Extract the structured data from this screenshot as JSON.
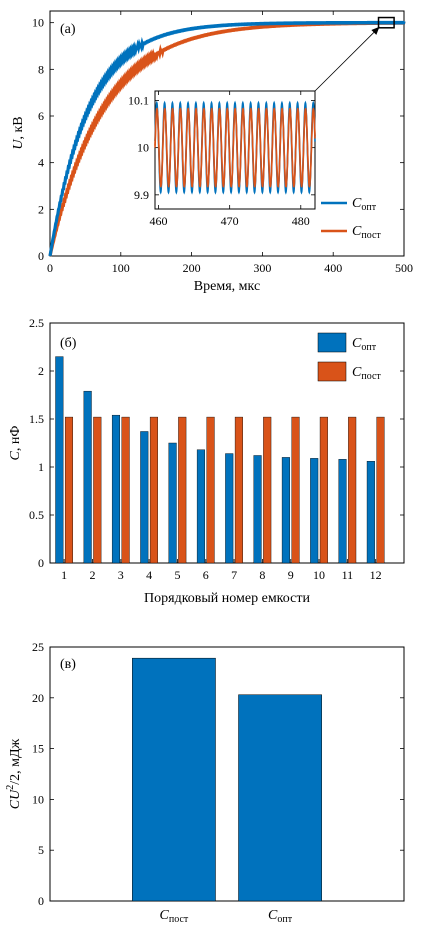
{
  "colors": {
    "opt": "#0072BD",
    "post": "#D95319",
    "axis": "#000000"
  },
  "chart_data": [
    {
      "type": "line",
      "panel_label": "(а)",
      "xlabel": "Время, мкс",
      "ylabel_var": "U",
      "ylabel_unit": ", кВ",
      "xlim": [
        0,
        500
      ],
      "ylim": [
        0,
        10.5
      ],
      "xticks": [
        0,
        100,
        200,
        300,
        400,
        500
      ],
      "yticks": [
        0,
        2,
        4,
        6,
        8,
        10
      ],
      "series": [
        {
          "name": "C",
          "sub": "опт",
          "color_key": "opt",
          "final": 10,
          "tau_us": 55,
          "ripple_kv": 0.06
        },
        {
          "name": "C",
          "sub": "пост",
          "color_key": "post",
          "final": 10,
          "tau_us": 75,
          "ripple_kv": 0.06
        }
      ],
      "legend": "bottom-right",
      "zoom_box": {
        "x": [
          464,
          486
        ],
        "y": [
          9.78,
          10.22
        ]
      },
      "inset": {
        "xlim": [
          459.5,
          482
        ],
        "ylim": [
          9.87,
          10.12
        ],
        "xticks": [
          460,
          470,
          480
        ],
        "ytick_labels": [
          9.9,
          10,
          10.1
        ],
        "period_us": 1.1,
        "center": 10,
        "amplitude_post": 0.085,
        "amplitude_opt": 0.095
      }
    },
    {
      "type": "bar",
      "panel_label": "(б)",
      "xlabel": "Порядковый номер емкости",
      "ylabel_var": "C",
      "ylabel_unit": ", нФ",
      "ylim": [
        0,
        2.5
      ],
      "yticks": [
        0,
        0.5,
        1,
        1.5,
        2,
        2.5
      ],
      "categories": [
        "1",
        "2",
        "3",
        "4",
        "5",
        "6",
        "7",
        "8",
        "9",
        "10",
        "11",
        "12"
      ],
      "series": [
        {
          "name": "C",
          "sub": "опт",
          "color_key": "opt",
          "values": [
            2.15,
            1.79,
            1.54,
            1.37,
            1.25,
            1.18,
            1.14,
            1.12,
            1.1,
            1.09,
            1.08,
            1.06
          ]
        },
        {
          "name": "C",
          "sub": "пост",
          "color_key": "post",
          "values": [
            1.52,
            1.52,
            1.52,
            1.52,
            1.52,
            1.52,
            1.52,
            1.52,
            1.52,
            1.52,
            1.52,
            1.52
          ]
        }
      ],
      "legend": "top-right"
    },
    {
      "type": "bar",
      "panel_label": "(в)",
      "ylabel": "CU²/2, мДж",
      "ylabel_main": "CU",
      "ylabel_sup": "2",
      "ylabel_rest": "/2, мДж",
      "ylim": [
        0,
        25
      ],
      "yticks": [
        0,
        5,
        10,
        15,
        20,
        25
      ],
      "categories": [
        {
          "name": "C",
          "sub": "пост"
        },
        {
          "name": "C",
          "sub": "опт"
        }
      ],
      "values": [
        23.9,
        20.3
      ],
      "color_key": "opt"
    }
  ]
}
